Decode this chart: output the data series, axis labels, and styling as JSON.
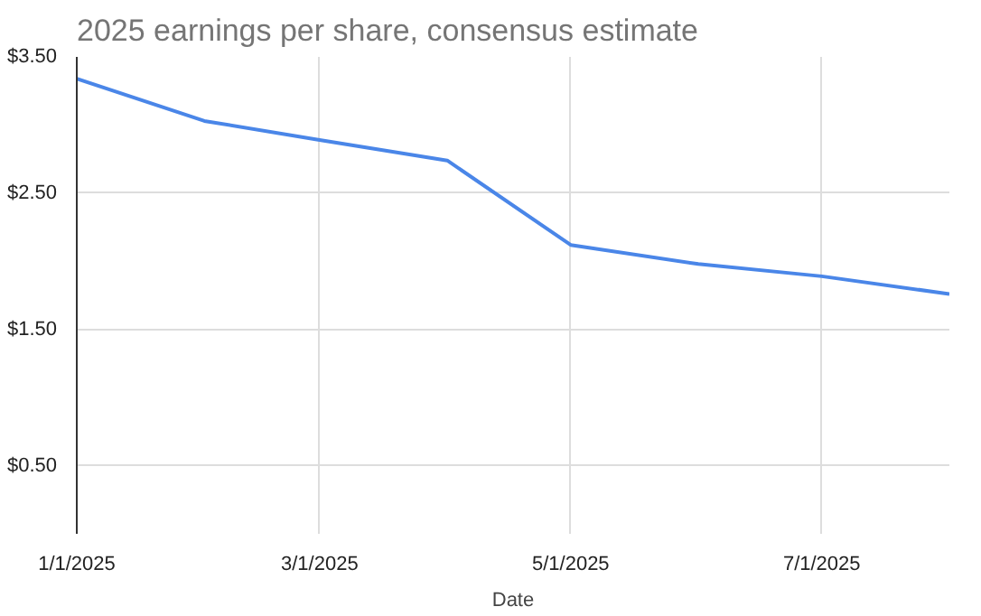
{
  "chart_data": {
    "type": "line",
    "title": "2025 earnings per share, consensus estimate",
    "xlabel": "Date",
    "x": [
      "2025-01-01",
      "2025-02-01",
      "2025-03-01",
      "2025-04-01",
      "2025-05-01",
      "2025-06-01",
      "2025-07-01",
      "2025-08-01"
    ],
    "series": [
      {
        "color": "#4a86e8",
        "values": [
          3.34,
          3.03,
          2.89,
          2.74,
          2.12,
          1.98,
          1.89,
          1.76
        ]
      }
    ],
    "xlim": [
      "2025-01-01",
      "2025-08-01"
    ],
    "xticks": [
      {
        "value": "2025-01-01",
        "label": "1/1/2025"
      },
      {
        "value": "2025-03-01",
        "label": "3/1/2025"
      },
      {
        "value": "2025-05-01",
        "label": "5/1/2025"
      },
      {
        "value": "2025-07-01",
        "label": "7/1/2025"
      }
    ],
    "ylim": [
      0,
      3.5
    ],
    "yticks": [
      {
        "value": 0.5,
        "label": "$0.50"
      },
      {
        "value": 1.5,
        "label": "$1.50"
      },
      {
        "value": 2.5,
        "label": "$2.50"
      },
      {
        "value": 3.5,
        "label": "$3.50"
      }
    ],
    "grid": true,
    "line_style": "solid"
  }
}
